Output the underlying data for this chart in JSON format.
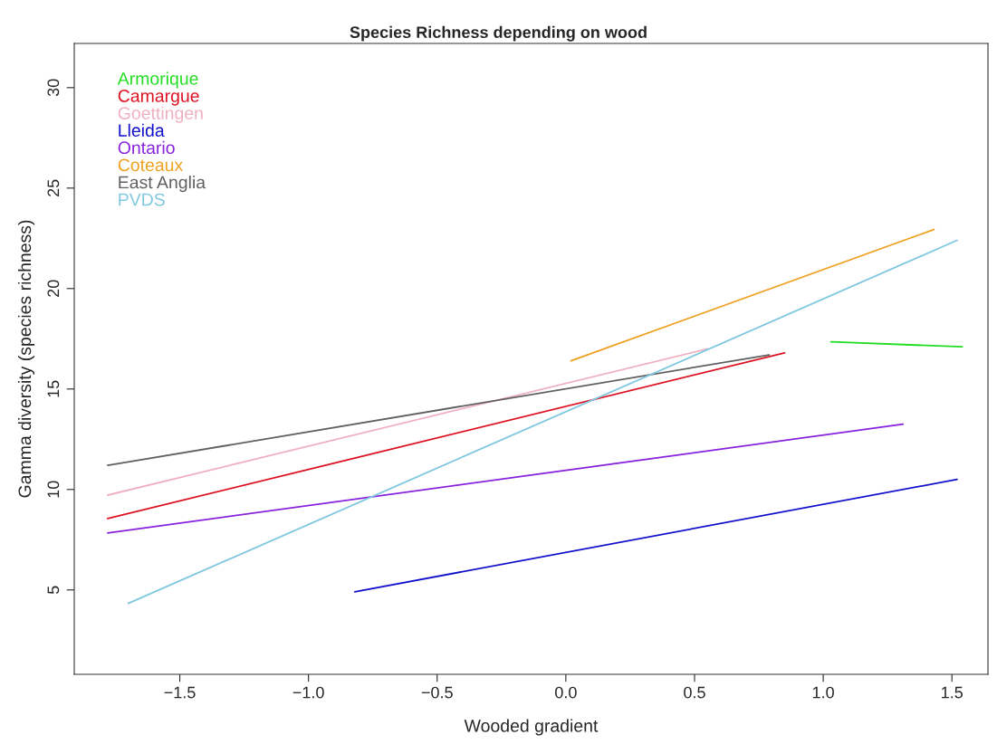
{
  "chart_data": {
    "type": "line",
    "title": "Species Richness depending on wood",
    "xlabel": "Wooded gradient",
    "ylabel": "Gamma diversity (species richness)",
    "series": [
      {
        "name": "Armorique",
        "color": "#22dd22",
        "x": [
          1.03,
          1.54
        ],
        "values": [
          17.35,
          17.1
        ]
      },
      {
        "name": "Camargue",
        "color": "#dd1122",
        "x": [
          -1.78,
          0.85
        ],
        "values": [
          8.55,
          16.8
        ]
      },
      {
        "name": "Goettingen",
        "color": "#f0b0c0",
        "x": [
          -1.78,
          0.55
        ],
        "values": [
          9.72,
          17.0
        ]
      },
      {
        "name": "Lleida",
        "color": "#1111cc",
        "x": [
          -0.82,
          1.52
        ],
        "values": [
          4.91,
          10.5
        ]
      },
      {
        "name": "Ontario",
        "color": "#8822dd",
        "x": [
          -1.78,
          1.31
        ],
        "values": [
          7.83,
          13.25
        ]
      },
      {
        "name": "Coteaux",
        "color": "#eea020",
        "x": [
          0.02,
          1.43
        ],
        "values": [
          16.4,
          22.94
        ]
      },
      {
        "name": "East Anglia",
        "color": "#606060",
        "x": [
          -1.78,
          0.79
        ],
        "values": [
          11.2,
          16.7
        ]
      },
      {
        "name": "PVDS",
        "color": "#80c8e0",
        "x": [
          -1.7,
          1.52
        ],
        "values": [
          4.33,
          22.4
        ]
      }
    ],
    "xlim": [
      -1.91,
      1.64
    ],
    "ylim": [
      0.8,
      32.2
    ],
    "xticks": [
      {
        "value": -1.5,
        "label": "−1.5"
      },
      {
        "value": -1.0,
        "label": "−1.0"
      },
      {
        "value": -0.5,
        "label": "−0.5"
      },
      {
        "value": 0.0,
        "label": "0.0"
      },
      {
        "value": 0.5,
        "label": "0.5"
      },
      {
        "value": 1.0,
        "label": "1.0"
      },
      {
        "value": 1.5,
        "label": "1.5"
      }
    ],
    "yticks": [
      5,
      10,
      15,
      20,
      25,
      30
    ],
    "grid": false,
    "legend": "top left",
    "line_style": "solid",
    "marker": "none"
  }
}
